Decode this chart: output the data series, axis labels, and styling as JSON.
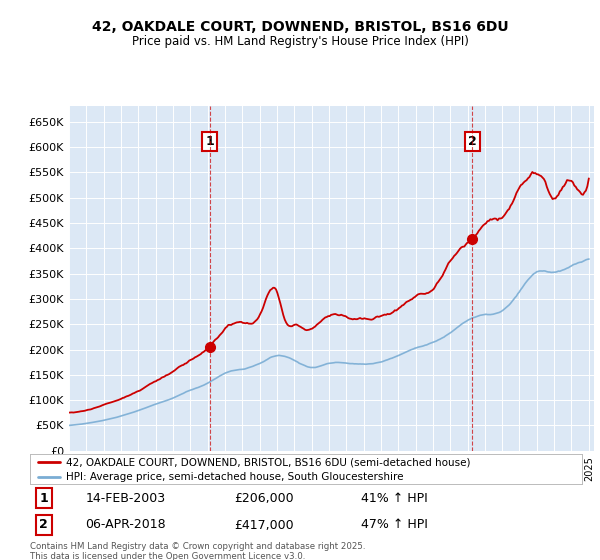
{
  "title": "42, OAKDALE COURT, DOWNEND, BRISTOL, BS16 6DU",
  "subtitle": "Price paid vs. HM Land Registry's House Price Index (HPI)",
  "sale1_date": "14-FEB-2003",
  "sale1_price": 206000,
  "sale1_hpi": "41% ↑ HPI",
  "sale1_label": "1",
  "sale2_date": "06-APR-2018",
  "sale2_price": 417000,
  "sale2_hpi": "47% ↑ HPI",
  "sale2_label": "2",
  "legend_line1": "42, OAKDALE COURT, DOWNEND, BRISTOL, BS16 6DU (semi-detached house)",
  "legend_line2": "HPI: Average price, semi-detached house, South Gloucestershire",
  "footer": "Contains HM Land Registry data © Crown copyright and database right 2025.\nThis data is licensed under the Open Government Licence v3.0.",
  "line_color_red": "#cc0000",
  "line_color_blue": "#7aadd4",
  "background_color": "#dce8f5",
  "ylim_min": 0,
  "ylim_max": 680000,
  "sale1_x": 2003.12,
  "sale2_x": 2018.27
}
